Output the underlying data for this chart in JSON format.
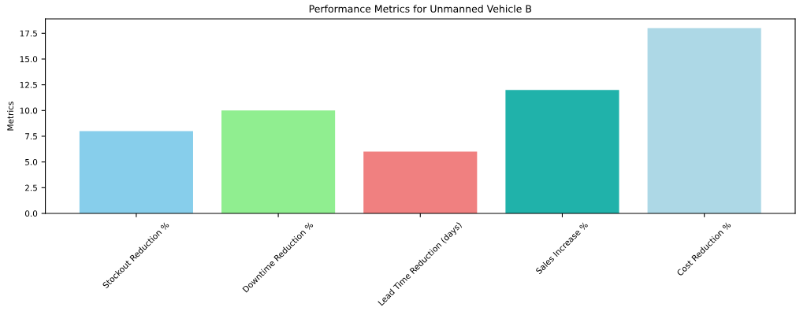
{
  "chart_data": {
    "type": "bar",
    "title": "Performance Metrics for Unmanned Vehicle B",
    "ylabel": "Metrics",
    "categories": [
      "Stockout Reduction %",
      "Downtime Reduction %",
      "Lead Time Reduction (days)",
      "Sales Increase %",
      "Cost Reduction %"
    ],
    "values": [
      8,
      10,
      6,
      12,
      18
    ],
    "colors": [
      "#87ceeb",
      "#90ee90",
      "#f08080",
      "#20b2aa",
      "#add8e6"
    ],
    "ylim": [
      0,
      18.9
    ],
    "yticks": [
      {
        "value": 0,
        "label": "0.0"
      },
      {
        "value": 2.5,
        "label": "2.5"
      },
      {
        "value": 5,
        "label": "5.0"
      },
      {
        "value": 7.5,
        "label": "7.5"
      },
      {
        "value": 10,
        "label": "10.0"
      },
      {
        "value": 12.5,
        "label": "12.5"
      },
      {
        "value": 15,
        "label": "15.0"
      },
      {
        "value": 17.5,
        "label": "17.5"
      }
    ],
    "grid": false,
    "legend": false
  }
}
